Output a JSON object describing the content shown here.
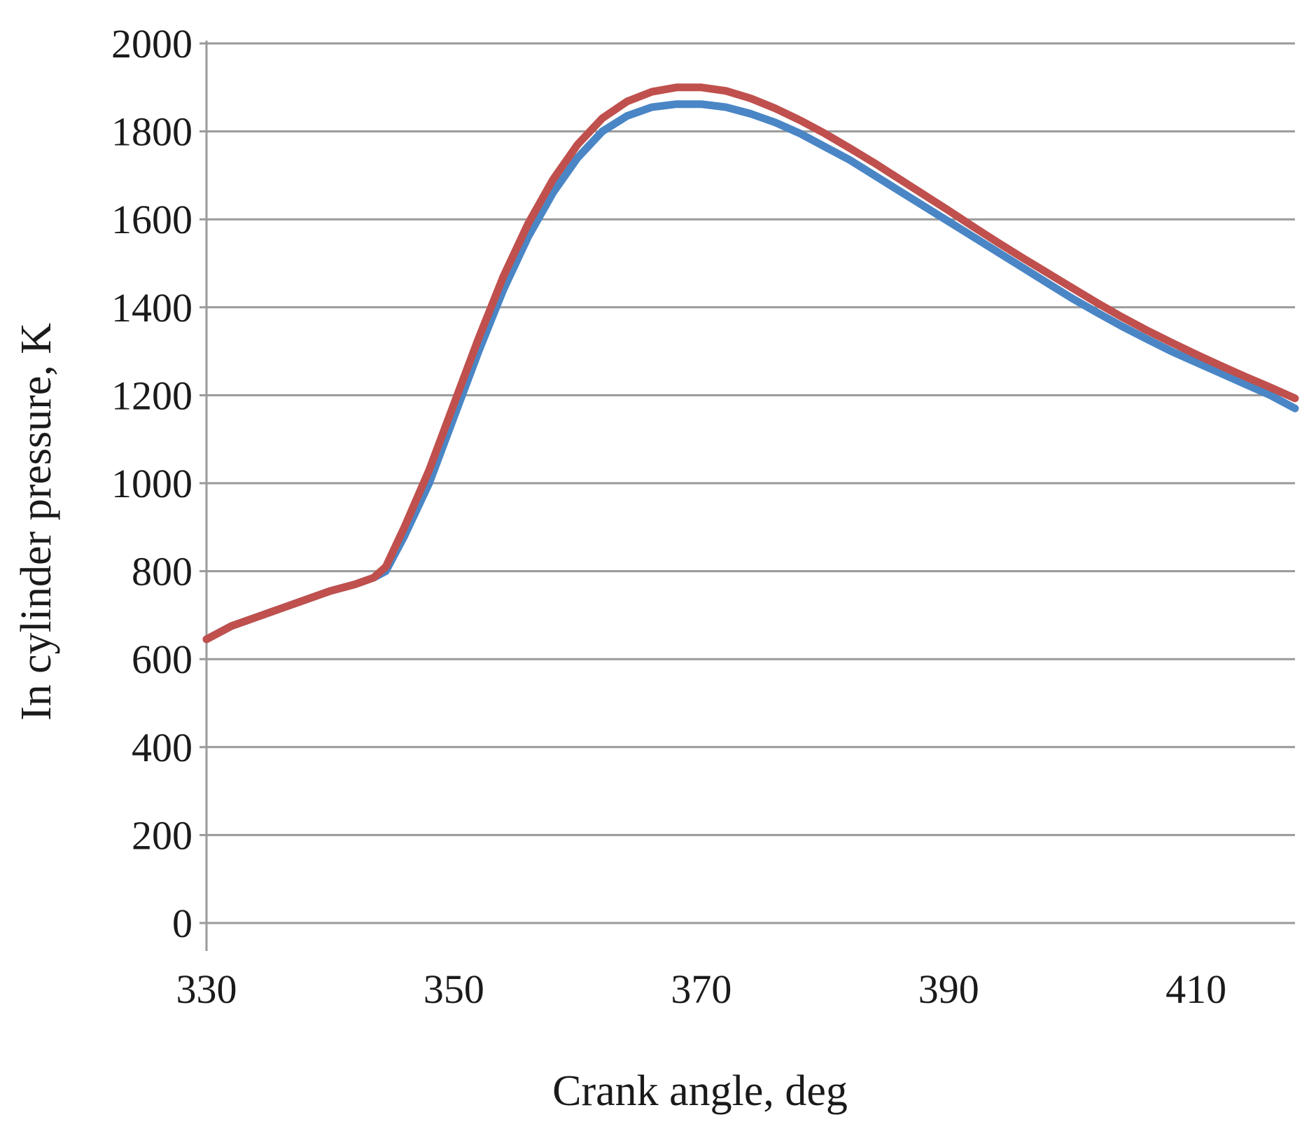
{
  "chart_data": {
    "type": "line",
    "title": "",
    "xlabel": "Crank angle, deg",
    "ylabel": "In cylinder pressure, K",
    "xlim": [
      330,
      418
    ],
    "ylim": [
      0,
      2000
    ],
    "xticks": [
      330,
      350,
      370,
      390,
      410
    ],
    "yticks": [
      0,
      200,
      400,
      600,
      800,
      1000,
      1200,
      1400,
      1600,
      1800,
      2000
    ],
    "grid": "horizontal",
    "legend": "none",
    "series": [
      {
        "color": "#4a86c5",
        "x": [
          330,
          332,
          334,
          336,
          338,
          340,
          342,
          343.5,
          344.5,
          346,
          348,
          350,
          352,
          354,
          356,
          358,
          360,
          362,
          364,
          366,
          368,
          370,
          372,
          374,
          376,
          378,
          380,
          382,
          384,
          386,
          388,
          390,
          392,
          394,
          396,
          398,
          400,
          402,
          404,
          406,
          408,
          410,
          412,
          414,
          416,
          418
        ],
        "y": [
          645,
          675,
          695,
          715,
          735,
          755,
          770,
          785,
          800,
          880,
          1000,
          1150,
          1300,
          1440,
          1560,
          1660,
          1740,
          1800,
          1835,
          1855,
          1862,
          1862,
          1855,
          1840,
          1820,
          1795,
          1765,
          1735,
          1700,
          1665,
          1630,
          1595,
          1560,
          1525,
          1490,
          1455,
          1420,
          1388,
          1357,
          1328,
          1300,
          1275,
          1250,
          1225,
          1200,
          1170
        ]
      },
      {
        "color": "#c0504d",
        "x": [
          330,
          332,
          334,
          336,
          338,
          340,
          342,
          343.5,
          344.5,
          346,
          348,
          350,
          352,
          354,
          356,
          358,
          360,
          362,
          364,
          366,
          368,
          370,
          372,
          374,
          376,
          378,
          380,
          382,
          384,
          386,
          388,
          390,
          392,
          394,
          396,
          398,
          400,
          402,
          404,
          406,
          408,
          410,
          412,
          414,
          416,
          418
        ],
        "y": [
          645,
          675,
          695,
          715,
          735,
          755,
          770,
          785,
          810,
          900,
          1030,
          1180,
          1330,
          1470,
          1590,
          1690,
          1770,
          1830,
          1868,
          1890,
          1900,
          1900,
          1892,
          1875,
          1852,
          1825,
          1795,
          1762,
          1728,
          1692,
          1656,
          1620,
          1583,
          1547,
          1512,
          1478,
          1444,
          1410,
          1378,
          1348,
          1320,
          1293,
          1267,
          1242,
          1218,
          1193
        ]
      }
    ]
  }
}
